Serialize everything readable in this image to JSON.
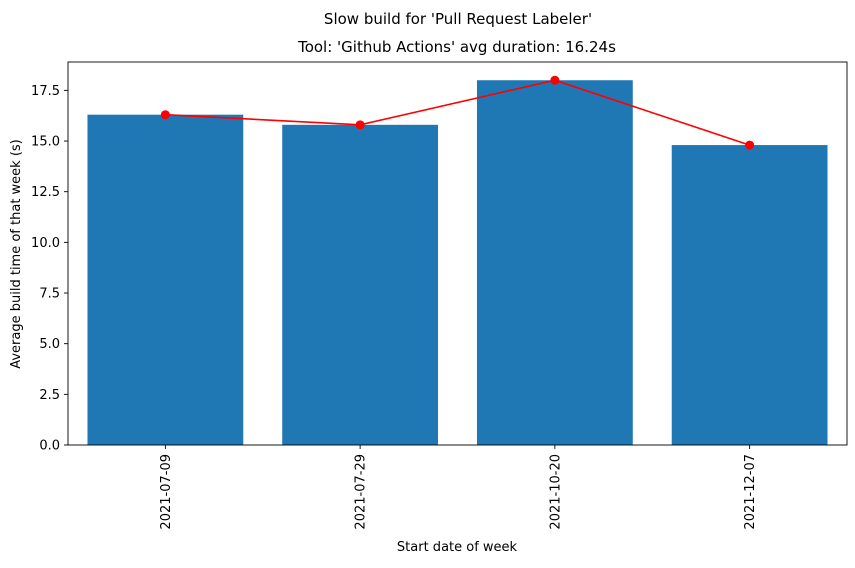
{
  "chart_data": {
    "type": "bar",
    "suptitle": "Slow build for 'Pull Request Labeler'",
    "title": "Tool: 'Github Actions' avg duration: 16.24s",
    "xlabel": "Start date of week",
    "ylabel": "Average build time of that week (s)",
    "categories": [
      "2021-07-09",
      "2021-07-29",
      "2021-10-20",
      "2021-12-07"
    ],
    "ylim": [
      0,
      18.9
    ],
    "yticks": [
      "0.0",
      "2.5",
      "5.0",
      "7.5",
      "10.0",
      "12.5",
      "15.0",
      "17.5"
    ],
    "grid": false,
    "series": [
      {
        "type": "bar",
        "values": [
          16.3,
          15.8,
          18.0,
          14.8
        ],
        "color": "#1f77b4"
      },
      {
        "type": "line",
        "values": [
          16.3,
          15.8,
          18.0,
          14.8
        ],
        "color": "#ff0000",
        "marker": "circle"
      }
    ]
  }
}
